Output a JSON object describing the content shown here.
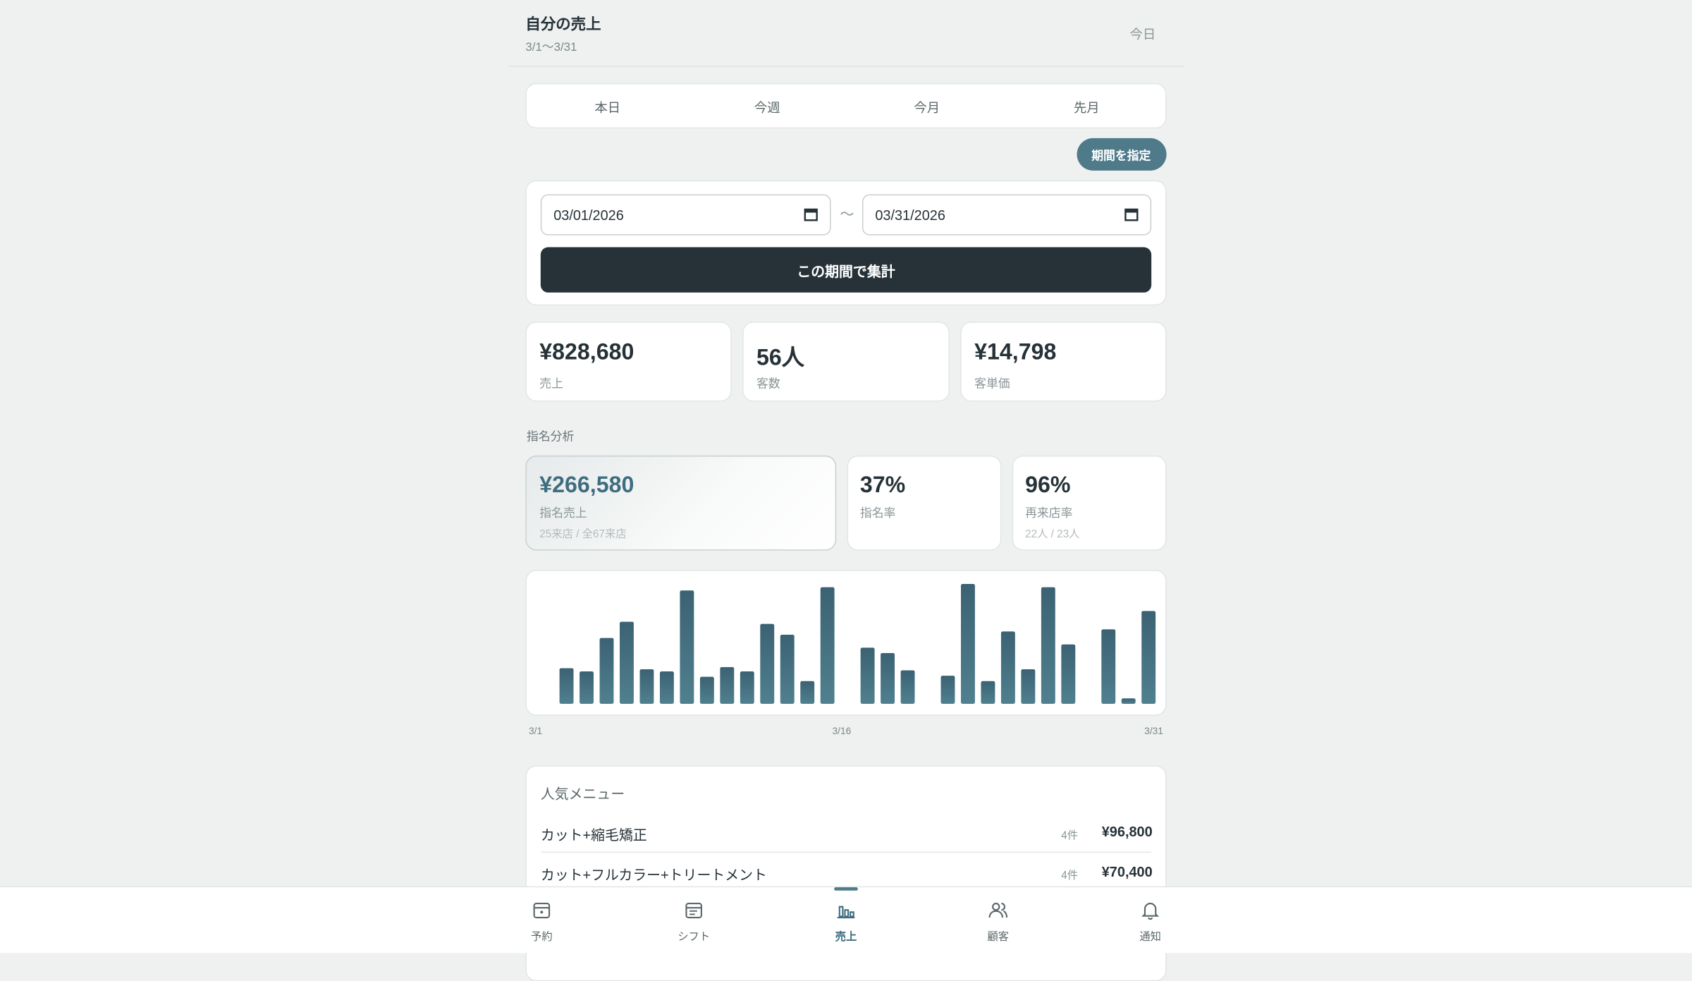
{
  "header": {
    "title": "自分の売上",
    "subtitle": "3/1〜3/31",
    "action": "今日"
  },
  "tabs": [
    "本日",
    "今週",
    "今月",
    "先月"
  ],
  "range_button": "期間を指定",
  "date_from": "03/01/2026",
  "range_separator": "〜",
  "date_to": "03/31/2026",
  "submit_button": "この期間で集計",
  "stats": [
    {
      "value": "¥828,680",
      "label": "売上"
    },
    {
      "value": "56人",
      "label": "客数"
    },
    {
      "value": "¥14,798",
      "label": "客単価"
    }
  ],
  "nomination": {
    "title": "指名分析",
    "cards": [
      {
        "value": "¥266,580",
        "label": "指名売上",
        "note": "25来店 / 全67来店"
      },
      {
        "value": "37%",
        "label": "指名率"
      },
      {
        "value": "96%",
        "label": "再来店率",
        "note": "22人 / 23人"
      }
    ]
  },
  "chart_data": {
    "type": "bar",
    "color": "#456e7e",
    "values": [
      33,
      30,
      61,
      76,
      32,
      30,
      105,
      25,
      34,
      30,
      74,
      64,
      21,
      108,
      0,
      52,
      47,
      31,
      0,
      26,
      111,
      21,
      67,
      32,
      108,
      55,
      0,
      69,
      5,
      86,
      0
    ],
    "x_labels": [
      "3/1",
      "3/16",
      "3/31"
    ]
  },
  "popular_menu": {
    "title": "人気メニュー",
    "items": [
      {
        "name": "カット+縮毛矯正",
        "count": "4件",
        "amount": "¥96,800"
      },
      {
        "name": "カット+フルカラー+トリートメント",
        "count": "4件",
        "amount": "¥70,400"
      }
    ]
  },
  "nav": [
    "予約",
    "シフト",
    "売上",
    "顧客",
    "通知"
  ]
}
